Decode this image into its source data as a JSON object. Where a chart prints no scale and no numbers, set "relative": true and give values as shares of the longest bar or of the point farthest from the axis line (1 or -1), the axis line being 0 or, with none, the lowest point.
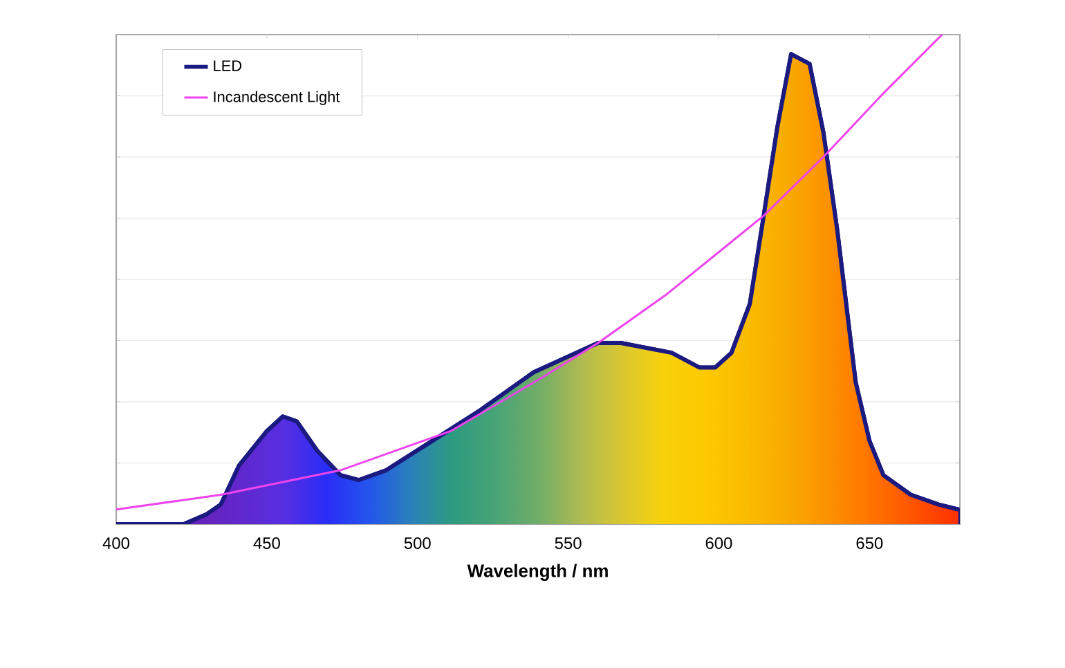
{
  "chart_data": {
    "type": "line",
    "relative": true,
    "xlabel": "Wavelength / nm",
    "xlim": [
      400,
      680
    ],
    "xticks": [
      400,
      450,
      500,
      550,
      600,
      650
    ],
    "grid": "y",
    "legend": "top left",
    "series": [
      {
        "name": "LED",
        "type": "area",
        "color": "#1a1a80",
        "x": [
          400,
          422.4,
          430,
          434.7,
          440.8,
          450,
          455.3,
          459.9,
          466.7,
          474.4,
          480.5,
          489.6,
          504.9,
          520.2,
          538.5,
          549.2,
          559.9,
          567.5,
          584.3,
          593.5,
          598.8,
          604.2,
          610.3,
          614.9,
          619.4,
          624,
          630.1,
          634.7,
          639.3,
          645.4,
          650,
          654.6,
          663.7,
          672.9,
          679.5
        ],
        "values": [
          0.0,
          0.0,
          0.02,
          0.04,
          0.12,
          0.19,
          0.22,
          0.21,
          0.15,
          0.1,
          0.09,
          0.11,
          0.17,
          0.23,
          0.31,
          0.34,
          0.37,
          0.37,
          0.35,
          0.32,
          0.32,
          0.35,
          0.45,
          0.63,
          0.81,
          0.96,
          0.94,
          0.8,
          0.6,
          0.29,
          0.17,
          0.1,
          0.06,
          0.04,
          0.03
        ]
      },
      {
        "name": "Incandescent Light",
        "type": "line",
        "color": "#ee44ee",
        "x": [
          400,
          434.7,
          474.4,
          511,
          541.5,
          559.9,
          582.8,
          614.9,
          634.7,
          654.6,
          674.1
        ],
        "values": [
          0.03,
          0.06,
          0.11,
          0.19,
          0.3,
          0.37,
          0.47,
          0.63,
          0.75,
          0.88,
          1.0
        ]
      }
    ]
  }
}
